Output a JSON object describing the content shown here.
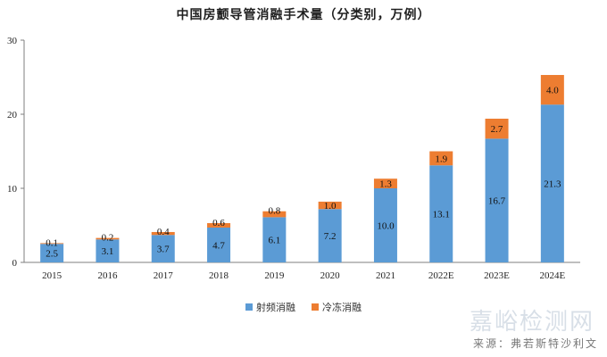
{
  "title": "中国房颤导管消融手术量（分类别，万例）",
  "source": "来源：弗若斯特沙利文",
  "watermark": "嘉峪检测网",
  "colors": {
    "rf": "#5b9bd5",
    "cryo": "#ed7d31"
  },
  "chart_data": {
    "type": "bar",
    "stacked": true,
    "title": "中国房颤导管消融手术量（分类别，万例）",
    "categories": [
      "2015",
      "2016",
      "2017",
      "2018",
      "2019",
      "2020",
      "2021",
      "2022E",
      "2023E",
      "2024E"
    ],
    "series": [
      {
        "name": "射频消融",
        "values": [
          2.5,
          3.1,
          3.7,
          4.7,
          6.1,
          7.2,
          10.0,
          13.1,
          16.7,
          21.3
        ]
      },
      {
        "name": "冷冻消融",
        "values": [
          0.1,
          0.2,
          0.4,
          0.6,
          0.8,
          1.0,
          1.3,
          1.9,
          2.7,
          4.0
        ]
      }
    ],
    "value_labels": [
      [
        "2.5",
        "3.1",
        "3.7",
        "4.7",
        "6.1",
        "7.2",
        "10.0",
        "13.1",
        "16.7",
        "21.3"
      ],
      [
        "0.1",
        "0.2",
        "0.4",
        "0.6",
        "0.8",
        "1.0",
        "1.3",
        "1.9",
        "2.7",
        "4.0"
      ]
    ],
    "ylim": [
      0,
      30
    ],
    "yticks": [
      0,
      10,
      20,
      30
    ],
    "grid": false,
    "legend_position": "bottom"
  }
}
